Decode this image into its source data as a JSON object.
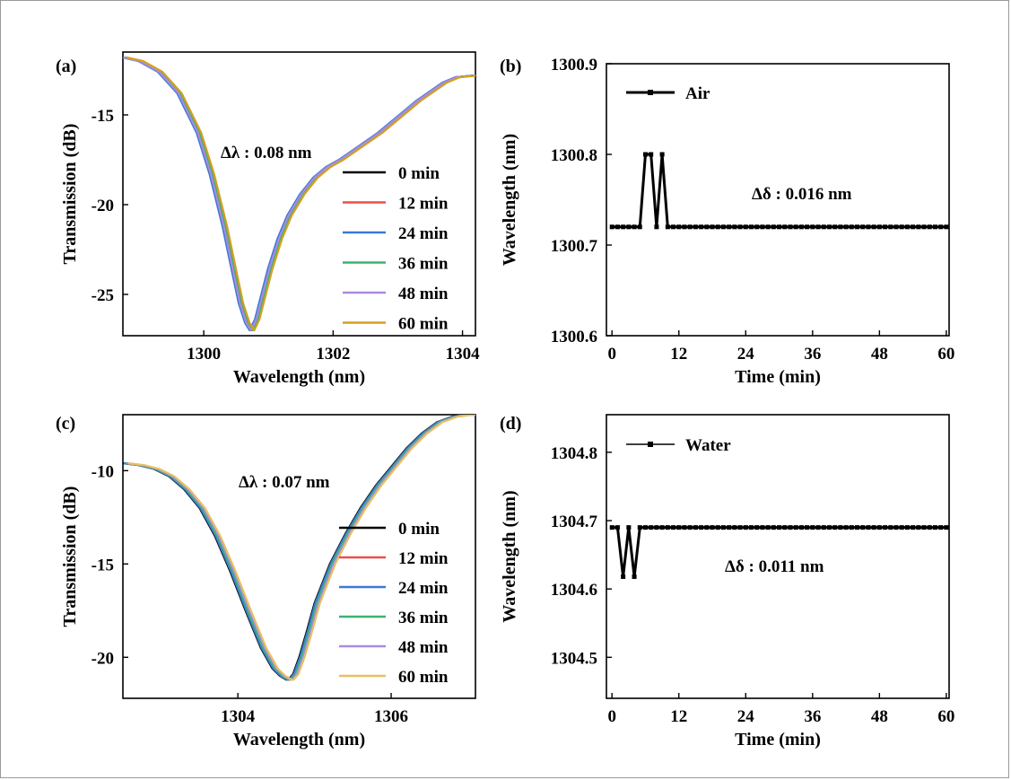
{
  "chart_data": [
    {
      "id": "a",
      "panel_label": "(a)",
      "type": "line",
      "xlabel": "Wavelength (nm)",
      "ylabel": "Transmission (dB)",
      "xlim": [
        1298.75,
        1304.2
      ],
      "ylim": [
        -27.3,
        -11.5
      ],
      "xticks": [
        1300,
        1302,
        1304
      ],
      "yticks": [
        -15,
        -20,
        -25
      ],
      "annotation": "Δλ : 0.08 nm",
      "dip_center": 1300.72,
      "curve": {
        "x": [
          1298.75,
          1299.0,
          1299.3,
          1299.6,
          1299.9,
          1300.1,
          1300.3,
          1300.45,
          1300.55,
          1300.65,
          1300.72,
          1300.8,
          1300.9,
          1301.0,
          1301.15,
          1301.3,
          1301.5,
          1301.7,
          1301.9,
          1302.1,
          1302.3,
          1302.5,
          1302.7,
          1302.9,
          1303.1,
          1303.3,
          1303.5,
          1303.7,
          1303.9,
          1304.2
        ],
        "y": [
          -11.8,
          -12.0,
          -12.6,
          -13.8,
          -16.0,
          -18.3,
          -21.2,
          -23.8,
          -25.5,
          -26.6,
          -27.0,
          -26.4,
          -25.0,
          -23.6,
          -21.9,
          -20.6,
          -19.4,
          -18.5,
          -17.9,
          -17.5,
          -17.0,
          -16.5,
          -16.0,
          -15.4,
          -14.8,
          -14.2,
          -13.7,
          -13.2,
          -12.9,
          -12.8
        ]
      },
      "series": [
        {
          "name": "0 min",
          "color": "#000000",
          "x_shift": 0.0
        },
        {
          "name": "12 min",
          "color": "#e8504a",
          "x_shift": 0.02
        },
        {
          "name": "24 min",
          "color": "#3a78d6",
          "x_shift": -0.01
        },
        {
          "name": "36 min",
          "color": "#3cb371",
          "x_shift": 0.04
        },
        {
          "name": "48 min",
          "color": "#a98be0",
          "x_shift": 0.01
        },
        {
          "name": "60 min",
          "color": "#d4a020",
          "x_shift": 0.06
        }
      ],
      "legend": "center-right"
    },
    {
      "id": "b",
      "panel_label": "(b)",
      "type": "line",
      "xlabel": "Time (min)",
      "ylabel": "Wavelength (nm)",
      "xlim": [
        -1,
        60.5
      ],
      "ylim": [
        1300.6,
        1300.9
      ],
      "xticks": [
        0,
        12,
        24,
        36,
        48,
        60
      ],
      "yticks": [
        1300.9,
        1300.8,
        1300.7,
        1300.6
      ],
      "annotation": "Δδ : 0.016 nm",
      "series": [
        {
          "name": "Air",
          "color": "#000000",
          "x": [
            0,
            1,
            2,
            3,
            4,
            5,
            6,
            7,
            8,
            9,
            10,
            11,
            12,
            13,
            14,
            15,
            16,
            17,
            18,
            19,
            20,
            21,
            22,
            23,
            24,
            25,
            26,
            27,
            28,
            29,
            30,
            31,
            32,
            33,
            34,
            35,
            36,
            37,
            38,
            39,
            40,
            41,
            42,
            43,
            44,
            45,
            46,
            47,
            48,
            49,
            50,
            51,
            52,
            53,
            54,
            55,
            56,
            57,
            58,
            59,
            60
          ],
          "y": [
            1300.72,
            1300.72,
            1300.72,
            1300.72,
            1300.72,
            1300.72,
            1300.8,
            1300.8,
            1300.72,
            1300.8,
            1300.72,
            1300.72,
            1300.72,
            1300.72,
            1300.72,
            1300.72,
            1300.72,
            1300.72,
            1300.72,
            1300.72,
            1300.72,
            1300.72,
            1300.72,
            1300.72,
            1300.72,
            1300.72,
            1300.72,
            1300.72,
            1300.72,
            1300.72,
            1300.72,
            1300.72,
            1300.72,
            1300.72,
            1300.72,
            1300.72,
            1300.72,
            1300.72,
            1300.72,
            1300.72,
            1300.72,
            1300.72,
            1300.72,
            1300.72,
            1300.72,
            1300.72,
            1300.72,
            1300.72,
            1300.72,
            1300.72,
            1300.72,
            1300.72,
            1300.72,
            1300.72,
            1300.72,
            1300.72,
            1300.72,
            1300.72,
            1300.72,
            1300.72,
            1300.72
          ]
        }
      ],
      "legend": "top-left"
    },
    {
      "id": "c",
      "panel_label": "(c)",
      "type": "line",
      "xlabel": "Wavelength (nm)",
      "ylabel": "Transmission (dB)",
      "xlim": [
        1302.5,
        1307.1
      ],
      "ylim": [
        -22.2,
        -7.0
      ],
      "xticks": [
        1304,
        1306
      ],
      "yticks": [
        -10,
        -15,
        -20
      ],
      "annotation": "Δλ : 0.07 nm",
      "dip_center": 1304.66,
      "curve": {
        "x": [
          1302.5,
          1302.7,
          1302.9,
          1303.1,
          1303.3,
          1303.5,
          1303.7,
          1303.9,
          1304.1,
          1304.3,
          1304.45,
          1304.55,
          1304.63,
          1304.66,
          1304.72,
          1304.8,
          1304.9,
          1305.0,
          1305.2,
          1305.4,
          1305.6,
          1305.8,
          1306.0,
          1306.2,
          1306.4,
          1306.6,
          1306.8,
          1307.0,
          1307.1
        ],
        "y": [
          -9.6,
          -9.7,
          -9.9,
          -10.3,
          -11.0,
          -12.0,
          -13.5,
          -15.4,
          -17.5,
          -19.5,
          -20.6,
          -21.0,
          -21.2,
          -21.2,
          -20.9,
          -20.0,
          -18.6,
          -17.1,
          -15.0,
          -13.4,
          -12.0,
          -10.8,
          -9.8,
          -8.8,
          -8.0,
          -7.4,
          -7.1,
          -7.0,
          -7.0
        ]
      },
      "series": [
        {
          "name": "0 min",
          "color": "#000000",
          "x_shift": 0.0
        },
        {
          "name": "12 min",
          "color": "#e8504a",
          "x_shift": 0.02
        },
        {
          "name": "24 min",
          "color": "#3a78d6",
          "x_shift": 0.01
        },
        {
          "name": "36 min",
          "color": "#3cb371",
          "x_shift": 0.03
        },
        {
          "name": "48 min",
          "color": "#a98be0",
          "x_shift": 0.05
        },
        {
          "name": "60 min",
          "color": "#e8c060",
          "x_shift": 0.07
        }
      ],
      "legend": "center-right"
    },
    {
      "id": "d",
      "panel_label": "(d)",
      "type": "line",
      "xlabel": "Time (min)",
      "ylabel": "Wavelength (nm)",
      "xlim": [
        -1,
        60.5
      ],
      "ylim": [
        1304.44,
        1304.855
      ],
      "xticks": [
        0,
        12,
        24,
        36,
        48,
        60
      ],
      "yticks": [
        1304.8,
        1304.7,
        1304.6,
        1304.5
      ],
      "annotation": "Δδ : 0.011 nm",
      "series": [
        {
          "name": "Water",
          "color": "#000000",
          "x": [
            0,
            1,
            2,
            3,
            4,
            5,
            6,
            7,
            8,
            9,
            10,
            11,
            12,
            13,
            14,
            15,
            16,
            17,
            18,
            19,
            20,
            21,
            22,
            23,
            24,
            25,
            26,
            27,
            28,
            29,
            30,
            31,
            32,
            33,
            34,
            35,
            36,
            37,
            38,
            39,
            40,
            41,
            42,
            43,
            44,
            45,
            46,
            47,
            48,
            49,
            50,
            51,
            52,
            53,
            54,
            55,
            56,
            57,
            58,
            59,
            60
          ],
          "y": [
            1304.69,
            1304.69,
            1304.618,
            1304.69,
            1304.618,
            1304.69,
            1304.69,
            1304.69,
            1304.69,
            1304.69,
            1304.69,
            1304.69,
            1304.69,
            1304.69,
            1304.69,
            1304.69,
            1304.69,
            1304.69,
            1304.69,
            1304.69,
            1304.69,
            1304.69,
            1304.69,
            1304.69,
            1304.69,
            1304.69,
            1304.69,
            1304.69,
            1304.69,
            1304.69,
            1304.69,
            1304.69,
            1304.69,
            1304.69,
            1304.69,
            1304.69,
            1304.69,
            1304.69,
            1304.69,
            1304.69,
            1304.69,
            1304.69,
            1304.69,
            1304.69,
            1304.69,
            1304.69,
            1304.69,
            1304.69,
            1304.69,
            1304.69,
            1304.69,
            1304.69,
            1304.69,
            1304.69,
            1304.69,
            1304.69,
            1304.69,
            1304.69,
            1304.69,
            1304.69,
            1304.69
          ]
        }
      ],
      "legend": "top-left"
    }
  ]
}
